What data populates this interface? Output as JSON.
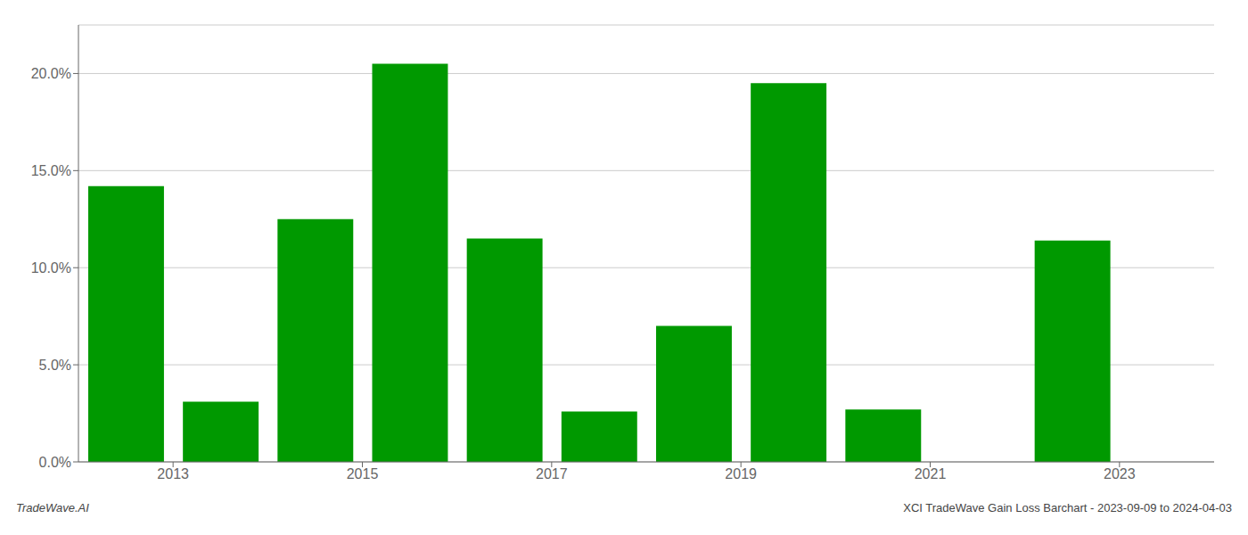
{
  "chart_data": {
    "type": "bar",
    "x": [
      2013,
      2014,
      2015,
      2016,
      2017,
      2018,
      2019,
      2020,
      2021,
      2022,
      2023
    ],
    "values": [
      0.142,
      0.031,
      0.125,
      0.205,
      0.115,
      0.026,
      0.07,
      0.195,
      0.027,
      0.0,
      0.114
    ],
    "color": "#009900",
    "xlim": [
      2012.5,
      2024.5
    ],
    "xticks": [
      {
        "value": 2013.5,
        "label": "2013"
      },
      {
        "value": 2015.5,
        "label": "2015"
      },
      {
        "value": 2017.5,
        "label": "2017"
      },
      {
        "value": 2019.5,
        "label": "2019"
      },
      {
        "value": 2021.5,
        "label": "2021"
      },
      {
        "value": 2023.5,
        "label": "2023"
      }
    ],
    "ylim": [
      0,
      0.225
    ],
    "yticks": [
      {
        "value": 0.0,
        "label": "0.0%"
      },
      {
        "value": 0.05,
        "label": "5.0%"
      },
      {
        "value": 0.1,
        "label": "10.0%"
      },
      {
        "value": 0.15,
        "label": "15.0%"
      },
      {
        "value": 0.2,
        "label": "20.0%"
      }
    ],
    "grid": "y",
    "annotations": [
      "TradeWave.AI",
      "XCI TradeWave Gain Loss Barchart - 2023-09-09 to 2024-04-03"
    ]
  }
}
